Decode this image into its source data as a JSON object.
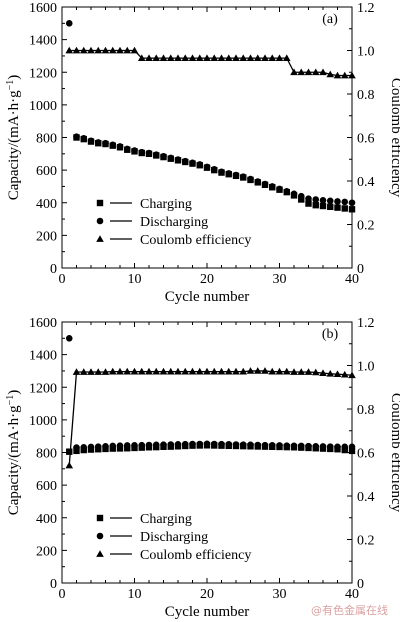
{
  "watermark": "@有色金属在线",
  "chart_data": [
    {
      "type": "scatter",
      "panel_label": "(a)",
      "xlabel": "Cycle number",
      "ylabel": "Capacity/(mA·h·g⁻¹)",
      "y2label": "Coulomb efficiency",
      "xlim": [
        0,
        40
      ],
      "ylim": [
        0,
        1600
      ],
      "y2lim": [
        0,
        1.2
      ],
      "xticks": [
        0,
        10,
        20,
        30,
        40
      ],
      "yticks": [
        0,
        200,
        400,
        600,
        800,
        1000,
        1200,
        1400,
        1600
      ],
      "y2ticks": [
        0,
        0.2,
        0.4,
        0.6,
        0.8,
        1.0,
        1.2
      ],
      "legend_position": "lower-left",
      "series": [
        {
          "name": "Charging",
          "marker": "square",
          "axis": "left",
          "x": [
            2,
            3,
            4,
            5,
            6,
            7,
            8,
            9,
            10,
            11,
            12,
            13,
            14,
            15,
            16,
            17,
            18,
            19,
            20,
            21,
            22,
            23,
            24,
            25,
            26,
            27,
            28,
            29,
            30,
            31,
            32,
            33,
            34,
            35,
            36,
            37,
            38,
            39,
            40
          ],
          "y": [
            800,
            790,
            775,
            765,
            760,
            750,
            740,
            725,
            715,
            705,
            700,
            690,
            680,
            670,
            660,
            650,
            640,
            630,
            615,
            600,
            585,
            575,
            565,
            555,
            540,
            525,
            510,
            495,
            480,
            465,
            445,
            420,
            395,
            385,
            380,
            375,
            370,
            365,
            360
          ]
        },
        {
          "name": "Discharging",
          "marker": "circle",
          "axis": "left",
          "x": [
            1,
            2,
            3,
            4,
            5,
            6,
            7,
            8,
            9,
            10,
            11,
            12,
            13,
            14,
            15,
            16,
            17,
            18,
            19,
            20,
            21,
            22,
            23,
            24,
            25,
            26,
            27,
            28,
            29,
            30,
            31,
            32,
            33,
            34,
            35,
            36,
            37,
            38,
            39,
            40
          ],
          "y": [
            1500,
            805,
            795,
            780,
            770,
            765,
            755,
            745,
            730,
            720,
            710,
            705,
            695,
            685,
            675,
            665,
            655,
            645,
            635,
            620,
            605,
            590,
            580,
            570,
            560,
            545,
            530,
            515,
            500,
            485,
            470,
            455,
            440,
            425,
            420,
            415,
            412,
            408,
            405,
            400
          ]
        },
        {
          "name": "Coulomb efficiency",
          "marker": "triangle",
          "axis": "right",
          "line": true,
          "x": [
            1,
            2,
            3,
            4,
            5,
            6,
            7,
            8,
            9,
            10,
            11,
            12,
            13,
            14,
            15,
            16,
            17,
            18,
            19,
            20,
            21,
            22,
            23,
            24,
            25,
            26,
            27,
            28,
            29,
            30,
            31,
            32,
            33,
            34,
            35,
            36,
            37,
            38,
            39,
            40
          ],
          "y": [
            1.0,
            1.0,
            1.0,
            1.0,
            1.0,
            1.0,
            1.0,
            1.0,
            1.0,
            1.0,
            0.965,
            0.965,
            0.965,
            0.965,
            0.965,
            0.965,
            0.965,
            0.965,
            0.965,
            0.965,
            0.965,
            0.965,
            0.965,
            0.965,
            0.965,
            0.965,
            0.965,
            0.965,
            0.965,
            0.965,
            0.965,
            0.9,
            0.9,
            0.9,
            0.9,
            0.9,
            0.89,
            0.885,
            0.885,
            0.885
          ]
        }
      ]
    },
    {
      "type": "scatter",
      "panel_label": "(b)",
      "xlabel": "Cycle number",
      "ylabel": "Capacity/(mA·h·g⁻¹)",
      "y2label": "Coulomb efficiency",
      "xlim": [
        0,
        40
      ],
      "ylim": [
        0,
        1600
      ],
      "y2lim": [
        0,
        1.2
      ],
      "xticks": [
        0,
        10,
        20,
        30,
        40
      ],
      "yticks": [
        0,
        200,
        400,
        600,
        800,
        1000,
        1200,
        1400,
        1600
      ],
      "y2ticks": [
        0,
        0.2,
        0.4,
        0.6,
        0.8,
        1.0,
        1.2
      ],
      "legend_position": "lower-left",
      "series": [
        {
          "name": "Charging",
          "marker": "square",
          "axis": "left",
          "x": [
            1,
            2,
            3,
            4,
            5,
            6,
            7,
            8,
            9,
            10,
            11,
            12,
            13,
            14,
            15,
            16,
            17,
            18,
            19,
            20,
            21,
            22,
            23,
            24,
            25,
            26,
            27,
            28,
            29,
            30,
            31,
            32,
            33,
            34,
            35,
            36,
            37,
            38,
            39,
            40
          ],
          "y": [
            805,
            810,
            815,
            818,
            820,
            822,
            824,
            825,
            826,
            828,
            830,
            832,
            833,
            835,
            836,
            838,
            840,
            842,
            843,
            844,
            843,
            842,
            841,
            840,
            839,
            838,
            837,
            836,
            835,
            834,
            833,
            832,
            830,
            828,
            826,
            824,
            822,
            820,
            815,
            810
          ]
        },
        {
          "name": "Discharging",
          "marker": "circle",
          "axis": "left",
          "x": [
            1,
            2,
            3,
            4,
            5,
            6,
            7,
            8,
            9,
            10,
            11,
            12,
            13,
            14,
            15,
            16,
            17,
            18,
            19,
            20,
            21,
            22,
            23,
            24,
            25,
            26,
            27,
            28,
            29,
            30,
            31,
            32,
            33,
            34,
            35,
            36,
            37,
            38,
            39,
            40
          ],
          "y": [
            1500,
            830,
            832,
            834,
            836,
            838,
            840,
            842,
            843,
            844,
            845,
            846,
            847,
            848,
            849,
            850,
            851,
            852,
            852,
            853,
            852,
            851,
            850,
            849,
            848,
            847,
            846,
            845,
            844,
            843,
            842,
            841,
            840,
            839,
            838,
            837,
            836,
            835,
            835,
            835
          ]
        },
        {
          "name": "Coulomb efficiency",
          "marker": "triangle",
          "axis": "right",
          "line": true,
          "x": [
            1,
            2,
            3,
            4,
            5,
            6,
            7,
            8,
            9,
            10,
            11,
            12,
            13,
            14,
            15,
            16,
            17,
            18,
            19,
            20,
            21,
            22,
            23,
            24,
            25,
            26,
            27,
            28,
            29,
            30,
            31,
            32,
            33,
            34,
            35,
            36,
            37,
            38,
            39,
            40
          ],
          "y": [
            0.54,
            0.97,
            0.97,
            0.97,
            0.97,
            0.97,
            0.972,
            0.972,
            0.972,
            0.972,
            0.972,
            0.972,
            0.972,
            0.972,
            0.972,
            0.972,
            0.972,
            0.972,
            0.972,
            0.972,
            0.972,
            0.972,
            0.972,
            0.972,
            0.972,
            0.975,
            0.975,
            0.975,
            0.972,
            0.972,
            0.972,
            0.97,
            0.97,
            0.97,
            0.968,
            0.965,
            0.962,
            0.96,
            0.958,
            0.955
          ]
        }
      ]
    }
  ]
}
